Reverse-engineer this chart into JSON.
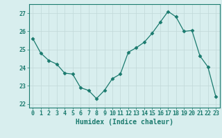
{
  "x": [
    0,
    1,
    2,
    3,
    4,
    5,
    6,
    7,
    8,
    9,
    10,
    11,
    12,
    13,
    14,
    15,
    16,
    17,
    18,
    19,
    20,
    21,
    22,
    23
  ],
  "y": [
    25.6,
    24.8,
    24.4,
    24.2,
    23.7,
    23.65,
    22.9,
    22.75,
    22.3,
    22.75,
    23.4,
    23.65,
    24.85,
    25.1,
    25.4,
    25.9,
    26.5,
    27.1,
    26.8,
    26.0,
    26.05,
    24.65,
    24.05,
    22.4
  ],
  "line_color": "#1a7a6e",
  "marker": "D",
  "marker_size": 2.5,
  "bg_color": "#d8eeee",
  "grid_color": "#c0d8d8",
  "ylim": [
    21.8,
    27.5
  ],
  "yticks": [
    22,
    23,
    24,
    25,
    26,
    27
  ],
  "xlim": [
    -0.5,
    23.5
  ],
  "xlabel": "Humidex (Indice chaleur)",
  "xlabel_fontsize": 7,
  "tick_fontsize": 6,
  "tick_color": "#1a7a6e"
}
